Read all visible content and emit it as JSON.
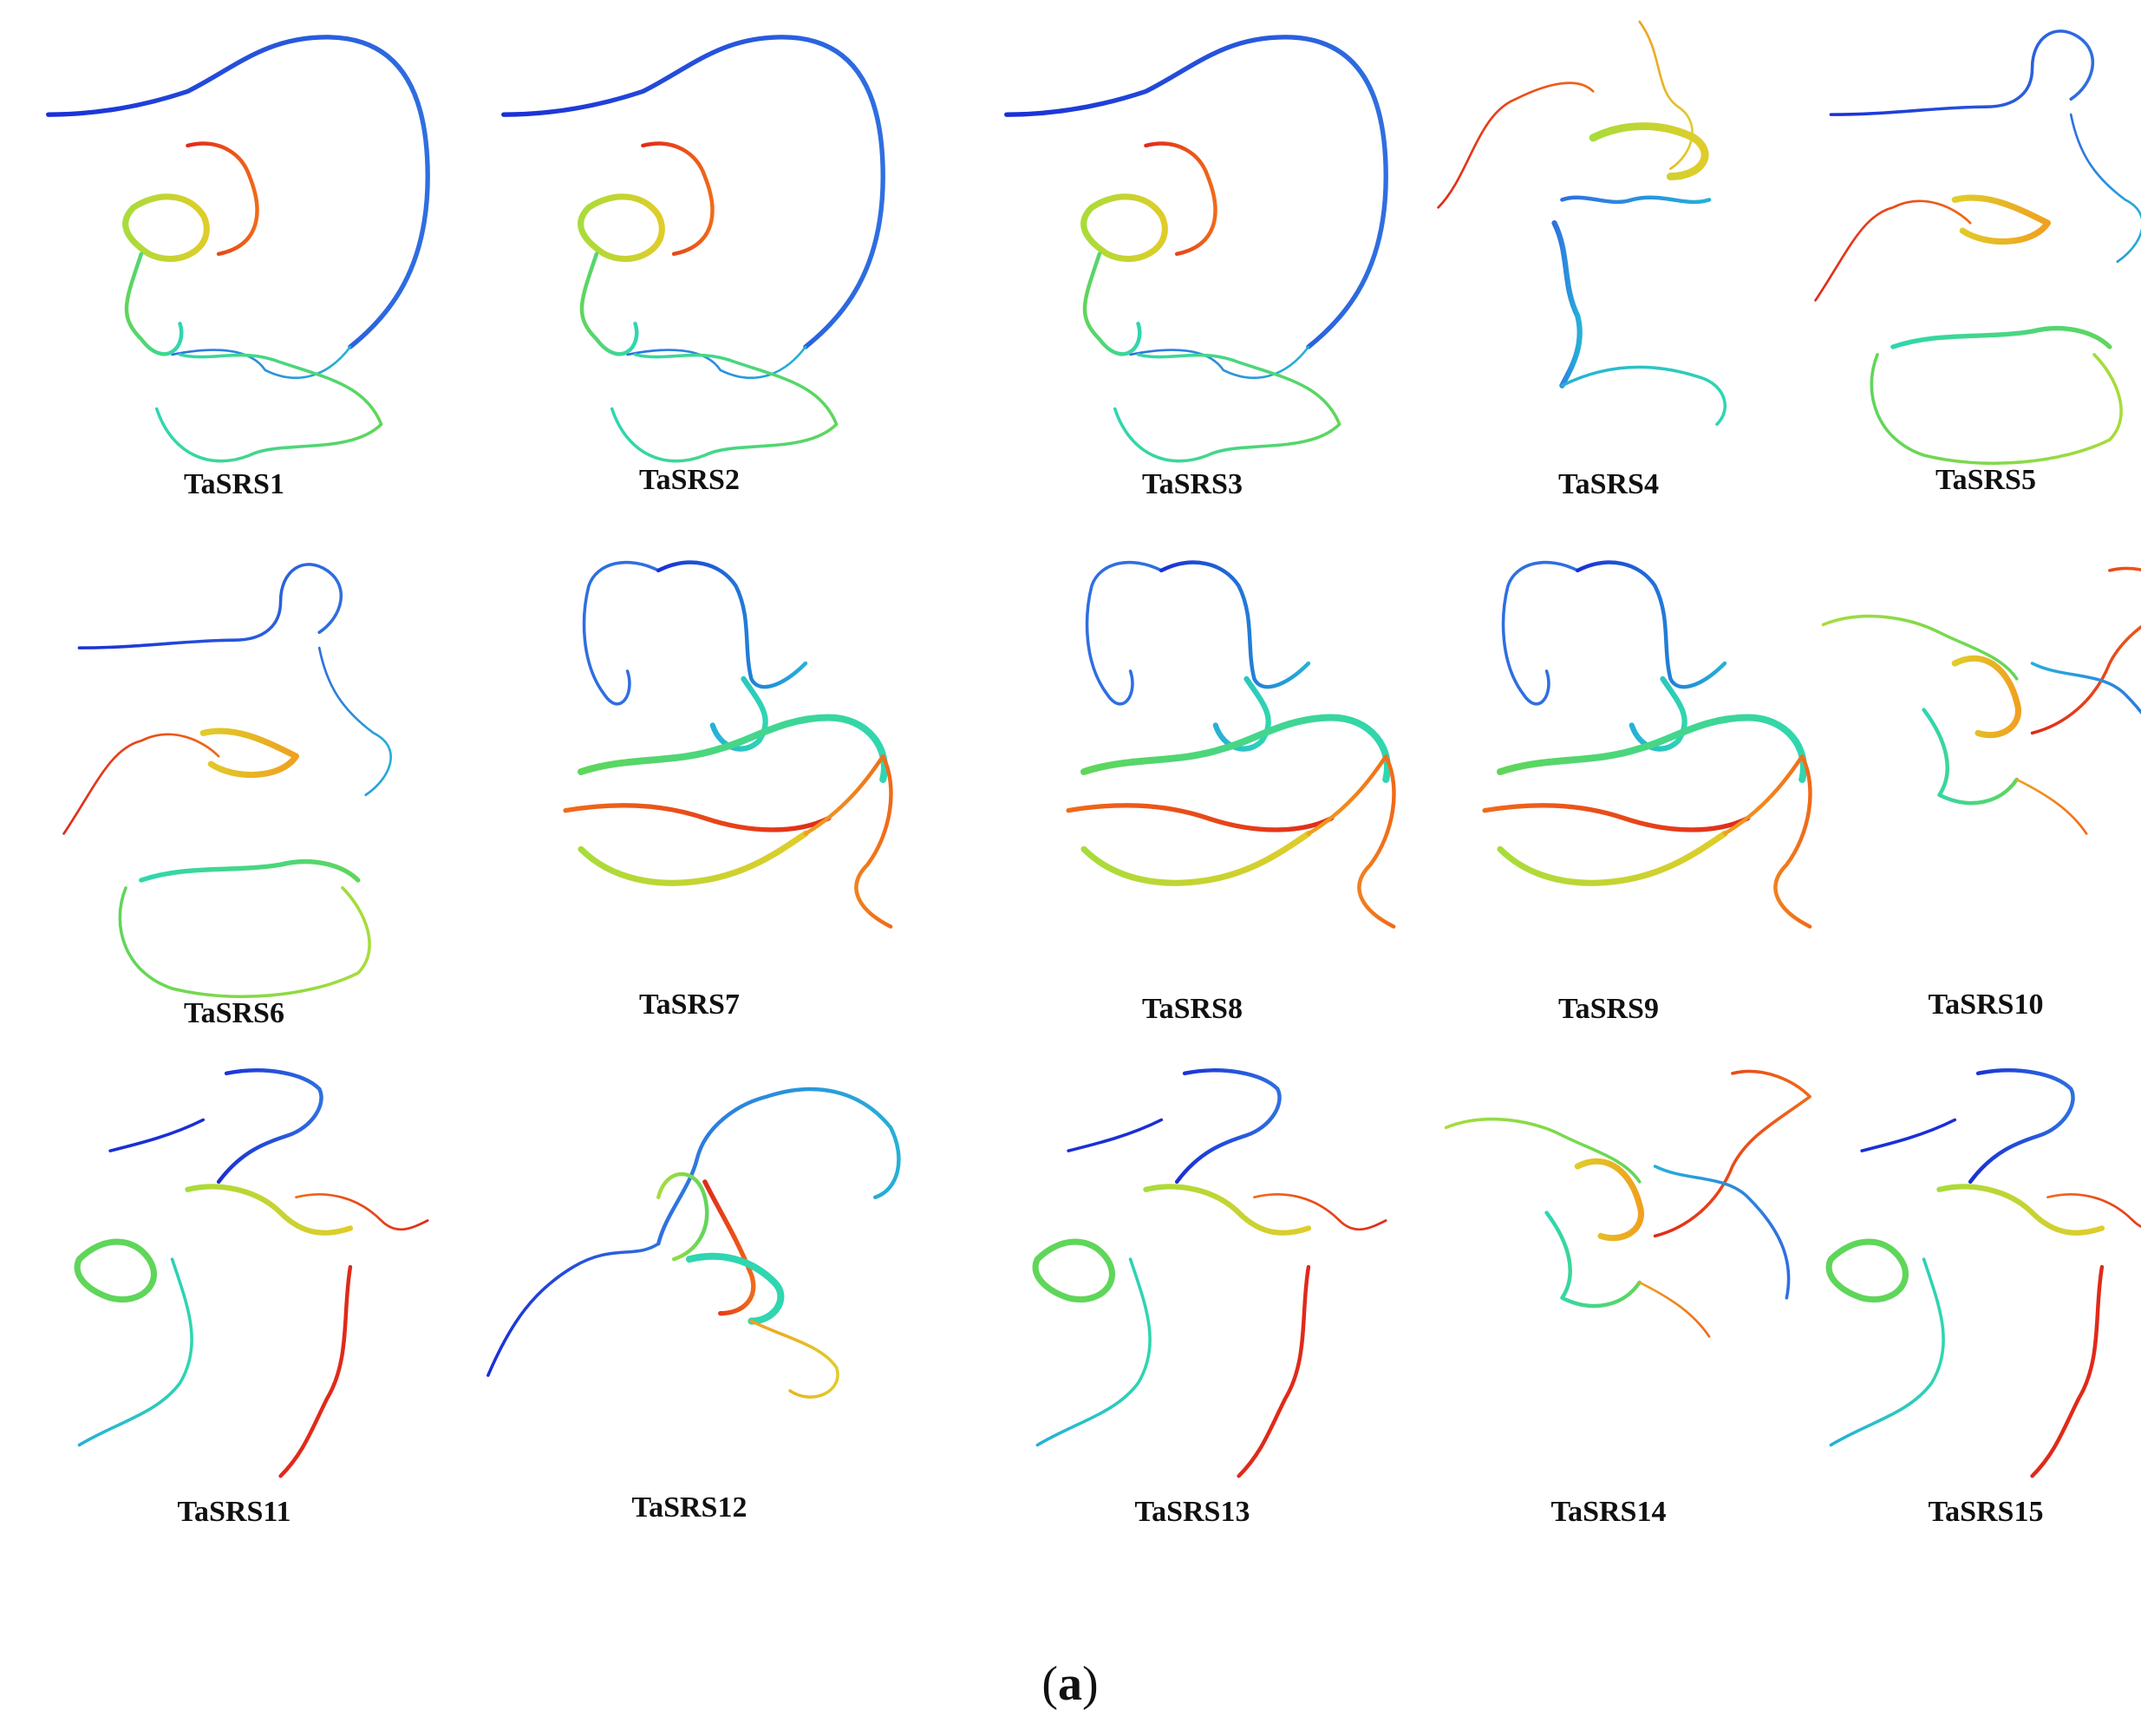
{
  "panels": [
    {
      "label": "TaSRS1",
      "variant": "A"
    },
    {
      "label": "TaSRS2",
      "variant": "A"
    },
    {
      "label": "TaSRS3",
      "variant": "A"
    },
    {
      "label": "TaSRS4",
      "variant": "B"
    },
    {
      "label": "TaSRS5",
      "variant": "C"
    },
    {
      "label": "TaSRS6",
      "variant": "C"
    },
    {
      "label": "TaSRS7",
      "variant": "D"
    },
    {
      "label": "TaSRS8",
      "variant": "D"
    },
    {
      "label": "TaSRS9",
      "variant": "D"
    },
    {
      "label": "TaSRS10",
      "variant": "E"
    },
    {
      "label": "TaSRS11",
      "variant": "F"
    },
    {
      "label": "TaSRS12",
      "variant": "G"
    },
    {
      "label": "TaSRS13",
      "variant": "F"
    },
    {
      "label": "TaSRS14",
      "variant": "E"
    },
    {
      "label": "TaSRS15",
      "variant": "F"
    }
  ],
  "caption": {
    "open": "(",
    "letter": "a",
    "close": ")"
  },
  "ribbon_colors": [
    "#1a2fd6",
    "#2f6fe0",
    "#26b0d8",
    "#2fd6b0",
    "#5fd65a",
    "#a8dc3a",
    "#e0cc2a",
    "#f0a020",
    "#f06a1a",
    "#e02a1a"
  ]
}
